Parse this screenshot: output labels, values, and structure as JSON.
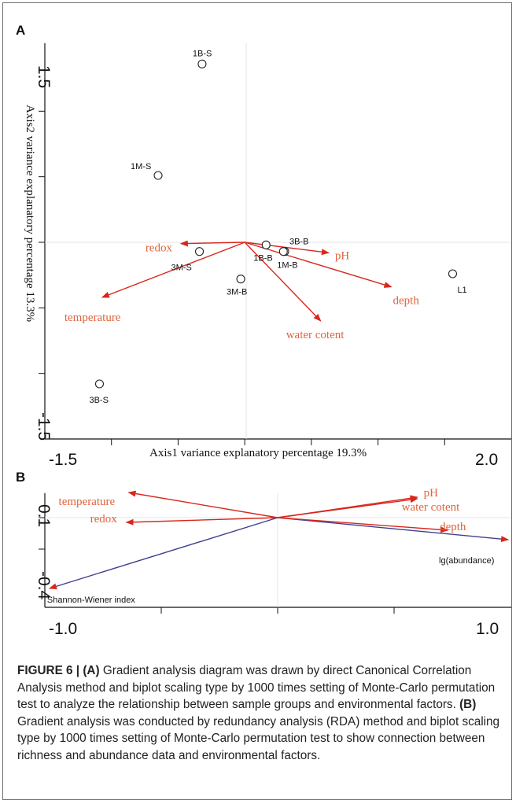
{
  "colors": {
    "env_arrow": "#d9261c",
    "env_label": "#e0643c",
    "response_arrow": "#3f3f8f",
    "axis": "#111111",
    "frame": "#6d6d6d"
  },
  "chart_data": [
    {
      "panel": "A",
      "type": "scatter",
      "xlabel": "Axis1 variance explanatory percentage 19.3%",
      "ylabel": "Axis2 variance explanatory percentage 13.3%",
      "xlim": [
        -1.5,
        2.0
      ],
      "ylim": [
        -1.5,
        1.5
      ],
      "x_tick_labels": [
        "-1.5",
        "2.0"
      ],
      "y_tick_labels": [
        "1.5",
        "-1.5"
      ],
      "samples": [
        {
          "label": "1B-S",
          "x": -0.32,
          "y": 1.36
        },
        {
          "label": "1M-S",
          "x": -0.65,
          "y": 0.51
        },
        {
          "label": "3M-S",
          "x": -0.34,
          "y": -0.07
        },
        {
          "label": "3M-B",
          "x": -0.03,
          "y": -0.28
        },
        {
          "label": "1B-B",
          "x": 0.16,
          "y": -0.02
        },
        {
          "label": "3B-B",
          "x": 0.3,
          "y": -0.07
        },
        {
          "label": "1M-B",
          "x": 0.29,
          "y": -0.07
        },
        {
          "label": "L1",
          "x": 1.56,
          "y": -0.24
        },
        {
          "label": "3B-S",
          "x": -1.09,
          "y": -1.08
        }
      ],
      "biplot_arrows": [
        {
          "label": "redox",
          "x": -0.48,
          "y": -0.01
        },
        {
          "label": "pH",
          "x": 0.63,
          "y": -0.08
        },
        {
          "label": "depth",
          "x": 1.1,
          "y": -0.34
        },
        {
          "label": "temperature",
          "x": -1.07,
          "y": -0.42
        },
        {
          "label": "water cotent",
          "x": 0.57,
          "y": -0.6
        }
      ]
    },
    {
      "panel": "B",
      "type": "scatter",
      "xlim": [
        -1.0,
        1.0
      ],
      "ylim": [
        -0.55,
        0.19
      ],
      "x_tick_labels": [
        "-1.0",
        "1.0"
      ],
      "y_tick_labels": [
        "0.1",
        "-0.4"
      ],
      "environmental_arrows": [
        {
          "label": "temperature",
          "x": -0.64,
          "y": 0.16
        },
        {
          "label": "redox",
          "x": -0.65,
          "y": -0.03
        },
        {
          "label": "pH",
          "x": 0.6,
          "y": 0.13
        },
        {
          "label": "water cotent",
          "x": 0.6,
          "y": 0.12
        },
        {
          "label": "depth",
          "x": 0.73,
          "y": -0.08
        }
      ],
      "response_arrows": [
        {
          "label": "Shannon-Wiener index",
          "x": -0.98,
          "y": -0.45
        },
        {
          "label": "lg(abundance)",
          "x": 0.99,
          "y": -0.14
        }
      ]
    }
  ],
  "caption": {
    "figure_label": "FIGURE 6 |",
    "label_a": "(A)",
    "text_a": "Gradient analysis diagram was drawn by direct Canonical Correlation Analysis method and biplot scaling type by 1000 times setting of Monte-Carlo permutation test to analyze the relationship between sample groups and environmental factors.",
    "label_b": "(B)",
    "text_b": "Gradient analysis was conducted by redundancy analysis (RDA) method and biplot scaling type by 1000 times setting of Monte-Carlo permutation test to show connection between richness and abundance data and environmental factors."
  }
}
